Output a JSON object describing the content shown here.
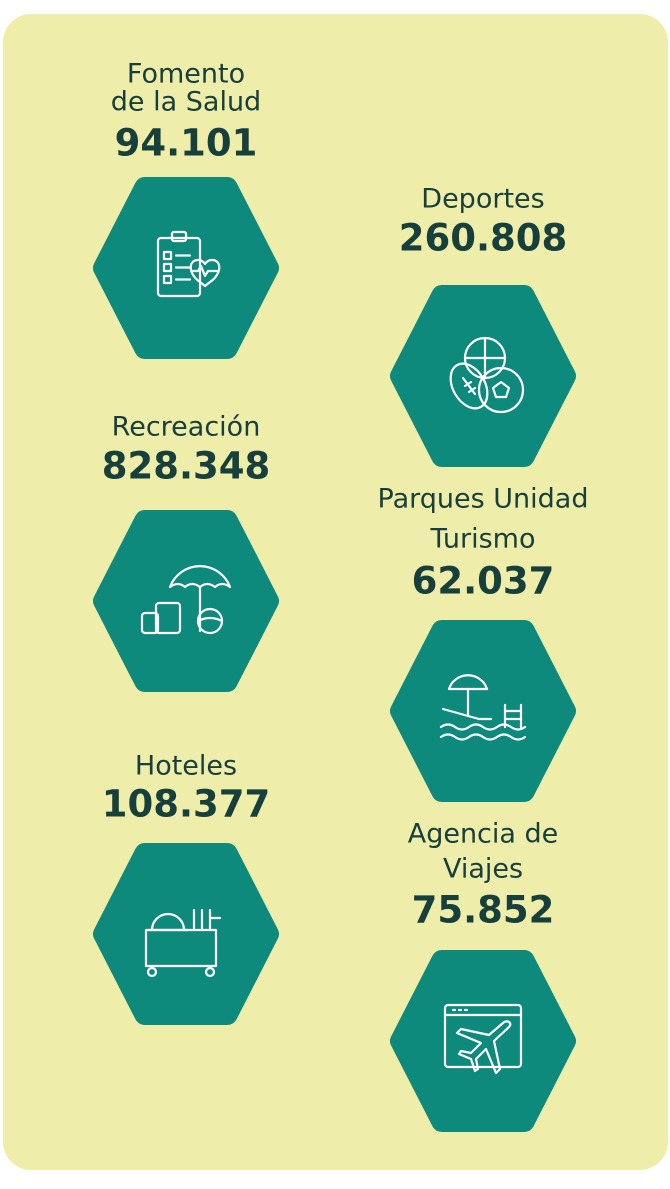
{
  "items": [
    {
      "label": [
        "Fomento",
        "de la Salud"
      ],
      "value": "94.101"
    },
    {
      "label": [
        "Deportes"
      ],
      "value": "260.808"
    },
    {
      "label": [
        "Recreación"
      ],
      "value": "828.348"
    },
    {
      "label": [
        "Parques Unidad",
        "Turismo"
      ],
      "value": "62.037"
    },
    {
      "label": [
        "Hoteles"
      ],
      "value": "108.377"
    },
    {
      "label": [
        "Agencia de",
        "Viajes"
      ],
      "value": "75.852"
    }
  ]
}
